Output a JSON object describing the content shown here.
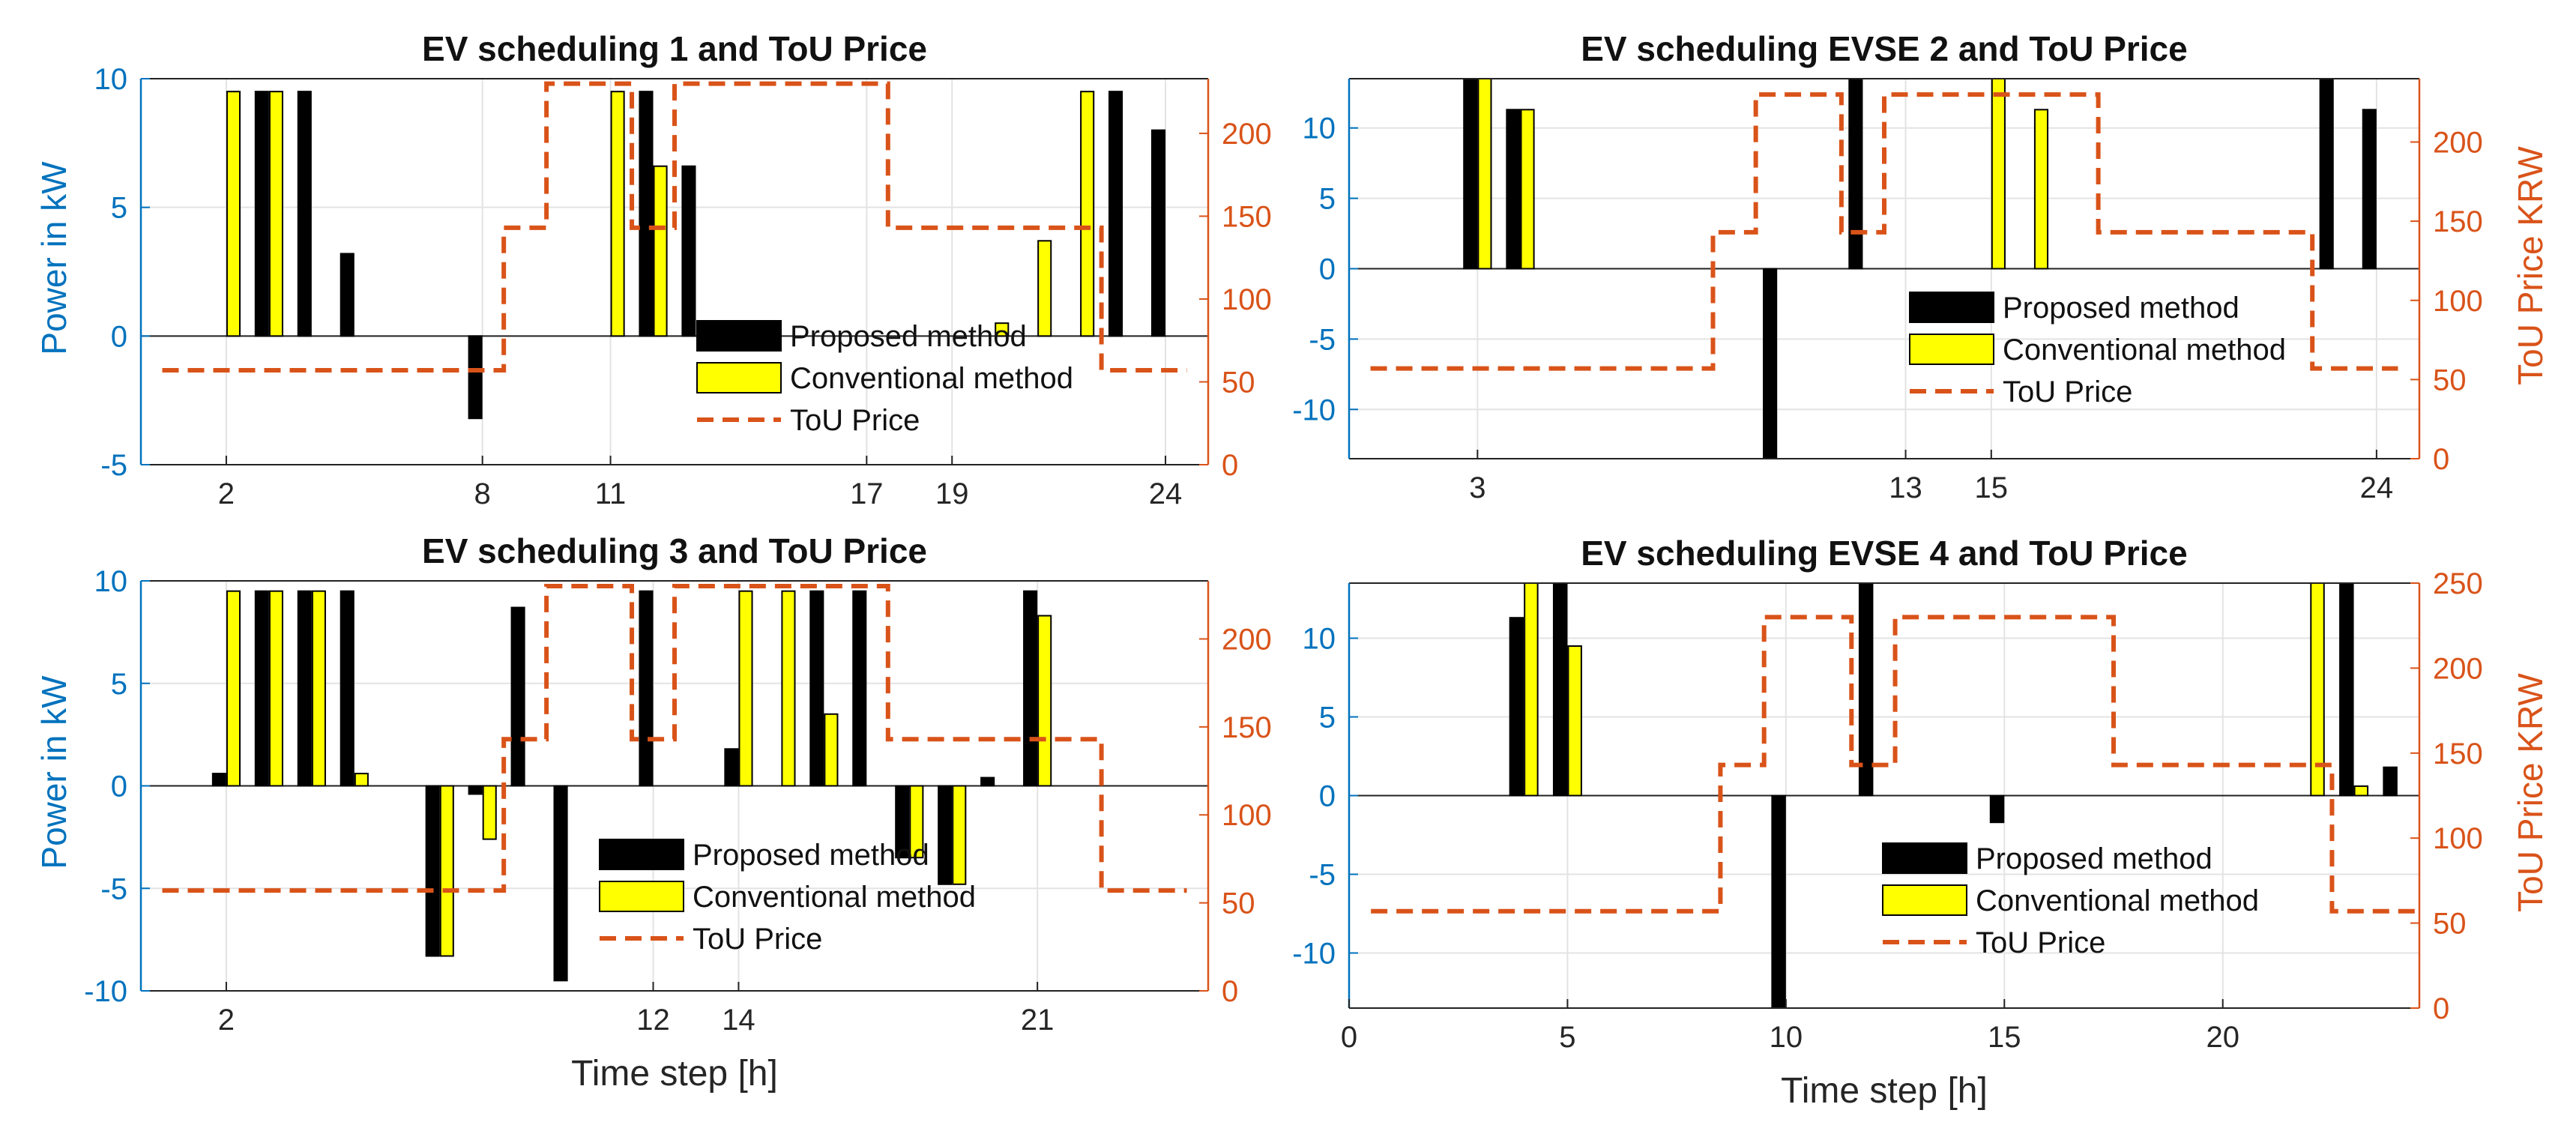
{
  "chart_data": [
    {
      "type": "bar",
      "title": "EV scheduling 1 and ToU Price",
      "ylabel": "Power in kW",
      "ylabel_right": "",
      "xlabel": "",
      "xlim": [
        0,
        25
      ],
      "ylim": [
        -5,
        10
      ],
      "ylim_right": [
        0,
        233
      ],
      "xticks": [
        2,
        8,
        11,
        17,
        19,
        24
      ],
      "yticks": [
        -5,
        0,
        5,
        10
      ],
      "yticks_right": [
        0,
        50,
        100,
        150,
        200
      ],
      "grid": true,
      "legend_position": "bottom-center",
      "series": [
        {
          "name": "Proposed method",
          "color": "#000000",
          "x": [
            3,
            4,
            5,
            8,
            12,
            13,
            23,
            24
          ],
          "values": [
            9.5,
            9.5,
            3.2,
            -3.2,
            9.5,
            6.6,
            9.5,
            8.0
          ]
        },
        {
          "name": "Conventional method",
          "color": "#ffff00",
          "x": [
            2,
            3,
            11,
            12,
            20,
            21,
            22
          ],
          "values": [
            9.5,
            9.5,
            9.5,
            6.6,
            0.5,
            3.7,
            9.5
          ]
        }
      ],
      "price": {
        "name": "ToU Price",
        "color": "#d95319",
        "x": [
          0.5,
          8.5,
          9.5,
          10.5,
          11.5,
          12.5,
          17.5,
          22.5,
          24.5
        ],
        "values": [
          57,
          143,
          230,
          230,
          143,
          230,
          143,
          57,
          57
        ]
      }
    },
    {
      "type": "bar",
      "title": "EV scheduling EVSE 2 and ToU Price",
      "ylabel": "",
      "ylabel_right": "ToU Price KRW",
      "xlabel": "",
      "xlim": [
        0,
        25
      ],
      "ylim": [
        -13.5,
        13.5
      ],
      "ylim_right": [
        0,
        240
      ],
      "xticks": [
        3,
        13,
        15,
        24
      ],
      "yticks": [
        -10,
        -5,
        0,
        5,
        10
      ],
      "yticks_right": [
        0,
        50,
        100,
        150,
        200
      ],
      "grid": true,
      "legend_position": "bottom-center",
      "series": [
        {
          "name": "Proposed method",
          "color": "#000000",
          "x": [
            3,
            4,
            10,
            12,
            23,
            24
          ],
          "values": [
            13.5,
            11.3,
            -13.5,
            13.5,
            13.5,
            11.3
          ]
        },
        {
          "name": "Conventional method",
          "color": "#ffff00",
          "x": [
            3,
            4,
            15,
            16
          ],
          "values": [
            13.5,
            11.3,
            13.5,
            11.3
          ]
        }
      ],
      "price": {
        "name": "ToU Price",
        "color": "#d95319",
        "x": [
          0.5,
          8.5,
          9.5,
          10.5,
          11.5,
          12.5,
          17.5,
          22.5,
          24.5
        ],
        "values": [
          57,
          143,
          230,
          230,
          143,
          230,
          143,
          57,
          57
        ]
      }
    },
    {
      "type": "bar",
      "title": "EV scheduling 3 and ToU Price",
      "ylabel": "Power in kW",
      "ylabel_right": "",
      "xlabel": "Time step [h]",
      "xlim": [
        0,
        25
      ],
      "ylim": [
        -10,
        10
      ],
      "ylim_right": [
        0,
        233
      ],
      "xticks": [
        2,
        12,
        14,
        21
      ],
      "yticks": [
        -10,
        -5,
        0,
        5,
        10
      ],
      "yticks_right": [
        0,
        50,
        100,
        150,
        200
      ],
      "grid": true,
      "legend_position": "bottom-center",
      "series": [
        {
          "name": "Proposed method",
          "color": "#000000",
          "x": [
            2,
            3,
            4,
            5,
            7,
            8,
            9,
            10,
            12,
            14,
            16,
            17,
            18,
            19,
            20,
            21
          ],
          "values": [
            0.6,
            9.5,
            9.5,
            9.5,
            -8.3,
            -0.4,
            8.7,
            -9.5,
            9.5,
            1.8,
            9.5,
            9.5,
            -3.5,
            -4.8,
            0.4,
            9.5
          ]
        },
        {
          "name": "Conventional method",
          "color": "#ffff00",
          "x": [
            2,
            3,
            4,
            5,
            7,
            8,
            14,
            15,
            16,
            18,
            19,
            21
          ],
          "values": [
            9.5,
            9.5,
            9.5,
            0.6,
            -8.3,
            -2.6,
            9.5,
            9.5,
            3.5,
            -3.5,
            -4.8,
            8.3
          ]
        }
      ],
      "price": {
        "name": "ToU Price",
        "color": "#d95319",
        "x": [
          0.5,
          8.5,
          9.5,
          10.5,
          11.5,
          12.5,
          17.5,
          22.5,
          24.5
        ],
        "values": [
          57,
          143,
          230,
          230,
          143,
          230,
          143,
          57,
          57
        ]
      }
    },
    {
      "type": "bar",
      "title": "EV scheduling EVSE 4 and ToU Price",
      "ylabel": "",
      "ylabel_right": "ToU Price KRW",
      "xlabel": "Time step [h]",
      "xlim": [
        0,
        24.5
      ],
      "ylim": [
        -13.5,
        13.5
      ],
      "ylim_right": [
        0,
        250
      ],
      "xticks": [
        0,
        5,
        10,
        15,
        20
      ],
      "yticks": [
        -10,
        -5,
        0,
        5,
        10
      ],
      "yticks_right": [
        0,
        50,
        100,
        150,
        200,
        250
      ],
      "grid": true,
      "legend_position": "bottom-center",
      "series": [
        {
          "name": "Proposed method",
          "color": "#000000",
          "x": [
            4,
            5,
            10,
            12,
            15,
            23,
            24
          ],
          "values": [
            11.3,
            13.5,
            -13.5,
            13.5,
            -1.7,
            13.5,
            1.8
          ]
        },
        {
          "name": "Conventional method",
          "color": "#ffff00",
          "x": [
            4,
            5,
            22,
            23
          ],
          "values": [
            13.5,
            9.5,
            13.5,
            0.6
          ]
        }
      ],
      "price": {
        "name": "ToU Price",
        "color": "#d95319",
        "x": [
          0.5,
          8.5,
          9.5,
          10.5,
          11.5,
          12.5,
          17.5,
          22.5,
          24.5
        ],
        "values": [
          57,
          143,
          230,
          230,
          143,
          230,
          143,
          57,
          57
        ]
      }
    }
  ]
}
